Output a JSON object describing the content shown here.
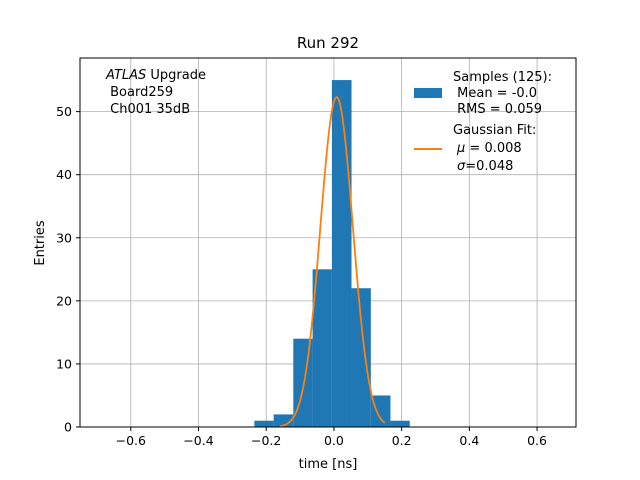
{
  "chart_data": {
    "type": "bar",
    "title": "Run 292",
    "xlabel": "time [ns]",
    "ylabel": "Entries",
    "xlim": [
      -0.75,
      0.715
    ],
    "ylim": [
      0,
      58.5
    ],
    "xticks": [
      -0.6,
      -0.4,
      -0.2,
      0.0,
      0.2,
      0.4,
      0.6
    ],
    "xtick_labels": [
      "−0.6",
      "−0.4",
      "−0.2",
      "0.0",
      "0.2",
      "0.4",
      "0.6"
    ],
    "yticks": [
      0,
      10,
      20,
      30,
      40,
      50
    ],
    "ytick_labels": [
      "0",
      "10",
      "20",
      "30",
      "40",
      "50"
    ],
    "grid": true,
    "bin_edges": [
      -0.235,
      -0.178,
      -0.12,
      -0.063,
      -0.006,
      0.052,
      0.109,
      0.167,
      0.224
    ],
    "bin_counts": [
      1,
      2,
      14,
      25,
      55,
      22,
      5,
      1
    ],
    "bar_color": "#1f77b4",
    "fit": {
      "mu": 0.008,
      "sigma": 0.048,
      "amplitude": 52.3,
      "x_range": [
        -0.16,
        0.15
      ],
      "color": "#ff7f0e"
    },
    "annotation_lines": [
      "ATLAS Upgrade",
      " Board259",
      " Ch001 35dB"
    ],
    "legend": {
      "position": "upper right",
      "hist": {
        "lines": [
          "Samples (125):",
          " Mean = -0.0",
          " RMS = 0.059"
        ]
      },
      "fit": {
        "lines": [
          "Gaussian Fit:",
          " μ = 0.008",
          " σ=0.048"
        ]
      }
    }
  }
}
